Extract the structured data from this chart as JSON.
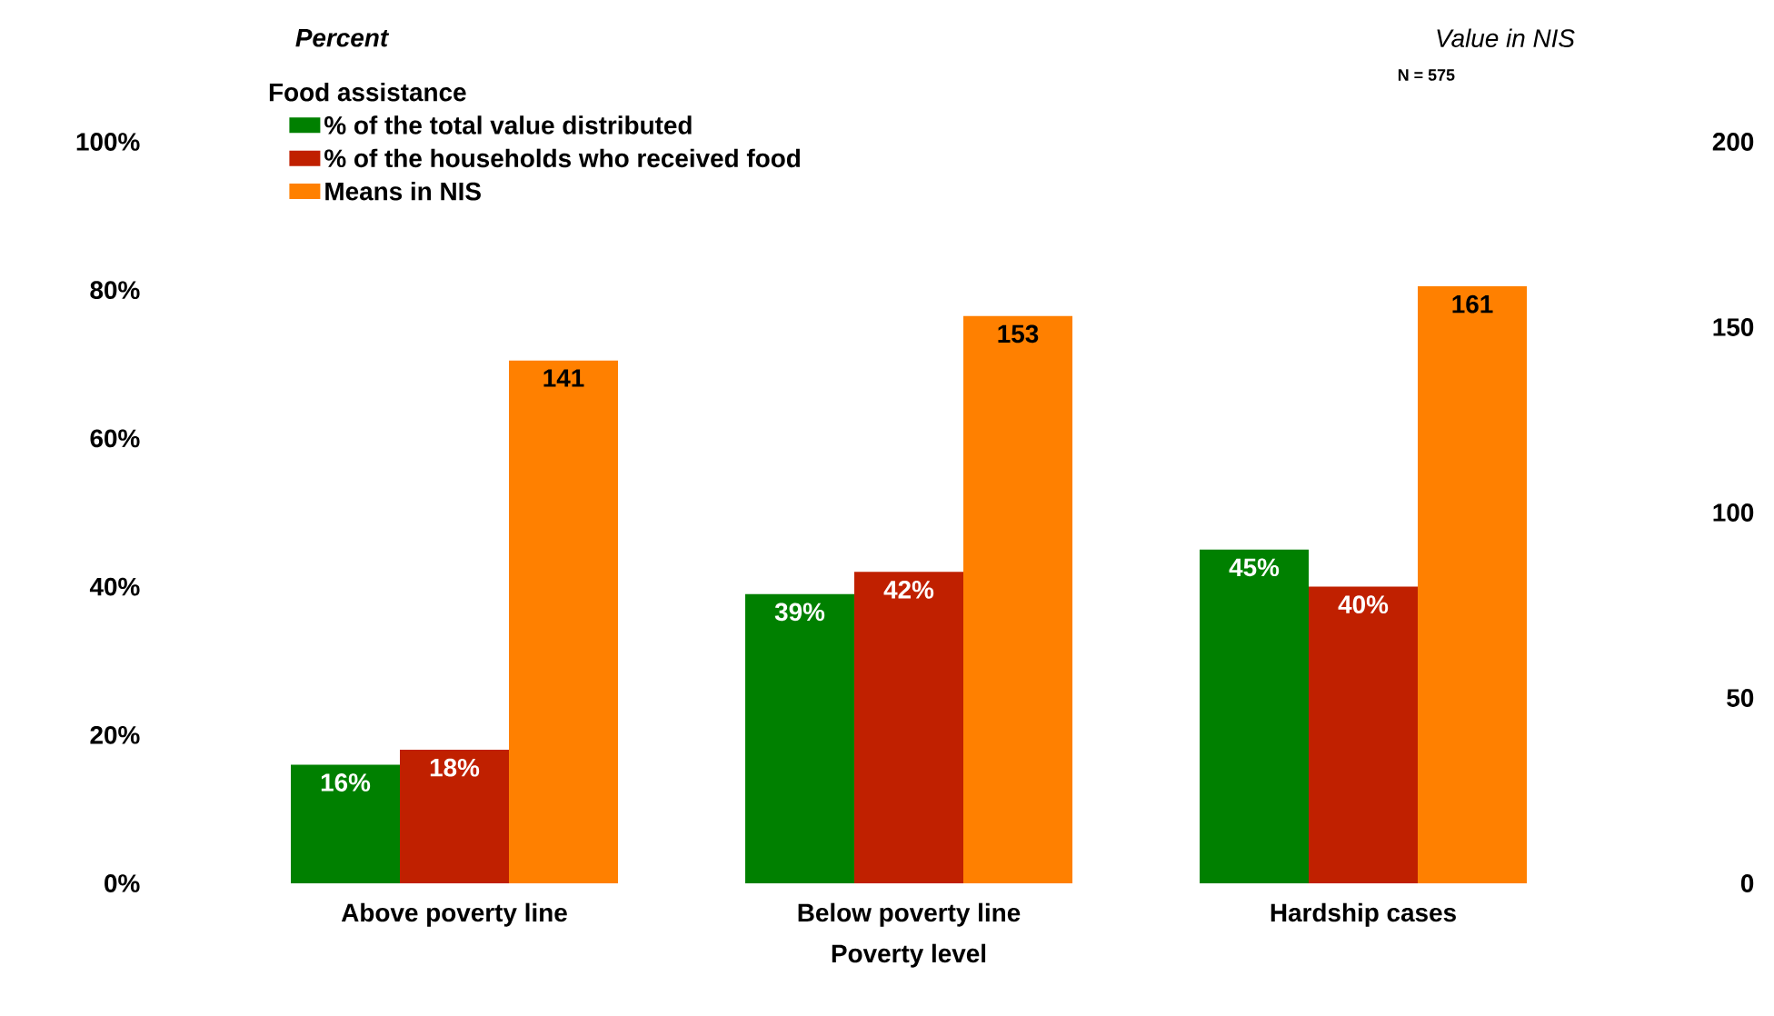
{
  "chart_data": {
    "type": "bar",
    "categories": [
      "Above poverty line",
      "Below poverty line",
      "Hardship cases"
    ],
    "xlabel": "Poverty level",
    "ylabel": "Percent",
    "y2label": "Value in NIS",
    "legend_title": "Food assistance",
    "legend": "top left",
    "annotations": [
      "N = 575"
    ],
    "ylim": [
      0,
      100
    ],
    "yticks": [
      {
        "value": 0,
        "label": "0%"
      },
      {
        "value": 20,
        "label": "20%"
      },
      {
        "value": 40,
        "label": "40%"
      },
      {
        "value": 60,
        "label": "60%"
      },
      {
        "value": 80,
        "label": "80%"
      },
      {
        "value": 100,
        "label": "100%"
      }
    ],
    "y2lim": [
      0,
      200
    ],
    "y2ticks": [
      0,
      50,
      100,
      150,
      200
    ],
    "series": [
      {
        "name": "% of the total value distributed",
        "color": "#008000",
        "values": [
          16,
          39,
          45
        ],
        "value_labels": [
          "16%",
          "39%",
          "45%"
        ]
      },
      {
        "name": "% of the households who received food",
        "color": "#c02000",
        "values": [
          18,
          42,
          40
        ],
        "value_labels": [
          "18%",
          "42%",
          "40%"
        ]
      },
      {
        "name": "Means in NIS",
        "color": "#ff8000",
        "axis": "y2",
        "values": [
          141,
          153,
          161
        ],
        "value_labels": [
          "141",
          "153",
          "161"
        ]
      }
    ]
  }
}
